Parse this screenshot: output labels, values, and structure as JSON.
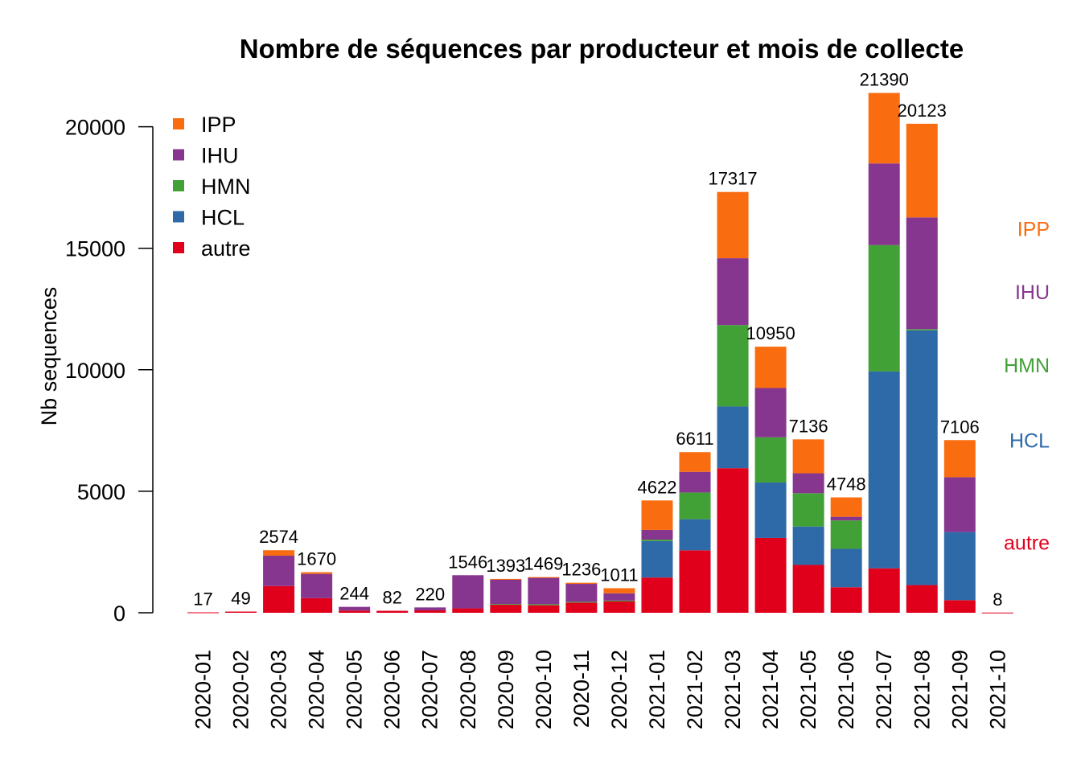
{
  "chart_data": {
    "type": "bar",
    "stacked": true,
    "title": "Nombre de séquences par producteur et mois de collecte",
    "xlabel": "",
    "ylabel": "Nb sequences",
    "ylim": [
      0,
      22000
    ],
    "yticks": [
      0,
      5000,
      10000,
      15000,
      20000
    ],
    "legend_position": "top-left",
    "categories": [
      "2020-01",
      "2020-02",
      "2020-03",
      "2020-04",
      "2020-05",
      "2020-06",
      "2020-07",
      "2020-08",
      "2020-09",
      "2020-10",
      "2020-11",
      "2020-12",
      "2021-01",
      "2021-02",
      "2021-03",
      "2021-04",
      "2021-05",
      "2021-06",
      "2021-07",
      "2021-08",
      "2021-09",
      "2021-10"
    ],
    "totals": [
      17,
      49,
      2574,
      1670,
      244,
      82,
      220,
      1546,
      1393,
      1469,
      1236,
      1011,
      4622,
      6611,
      17317,
      10950,
      7136,
      4748,
      21390,
      20123,
      7106,
      8
    ],
    "series": [
      {
        "name": "autre",
        "color": "#e0001b",
        "values": [
          17,
          49,
          1100,
          600,
          90,
          82,
          100,
          180,
          330,
          310,
          420,
          480,
          1450,
          2570,
          5950,
          3080,
          1970,
          1050,
          1830,
          1140,
          520,
          8
        ]
      },
      {
        "name": "HCL",
        "color": "#2e6aa8",
        "values": [
          0,
          0,
          0,
          0,
          0,
          0,
          0,
          0,
          0,
          0,
          0,
          0,
          1500,
          1280,
          2540,
          2280,
          1580,
          1580,
          8100,
          10480,
          2800,
          0
        ]
      },
      {
        "name": "HMN",
        "color": "#42a136",
        "values": [
          0,
          0,
          0,
          0,
          0,
          0,
          0,
          0,
          30,
          40,
          30,
          20,
          60,
          1100,
          3350,
          1860,
          1370,
          1170,
          5200,
          50,
          0,
          0
        ]
      },
      {
        "name": "IHU",
        "color": "#87368f",
        "values": [
          0,
          0,
          1250,
          1000,
          154,
          0,
          120,
          1366,
          1010,
          1100,
          740,
          300,
          400,
          850,
          2750,
          2030,
          820,
          150,
          3360,
          4600,
          2260,
          0
        ]
      },
      {
        "name": "IPP",
        "color": "#f96d10",
        "values": [
          0,
          0,
          224,
          70,
          0,
          0,
          0,
          0,
          23,
          19,
          46,
          211,
          1212,
          811,
          2727,
          1700,
          1396,
          798,
          2900,
          3853,
          1526,
          0
        ]
      }
    ],
    "legend": [
      "IPP",
      "IHU",
      "HMN",
      "HCL",
      "autre"
    ],
    "side_labels": [
      "IPP",
      "IHU",
      "HMN",
      "HCL",
      "autre"
    ],
    "side_label_values": [
      15800,
      13200,
      10200,
      7100,
      2900
    ]
  }
}
